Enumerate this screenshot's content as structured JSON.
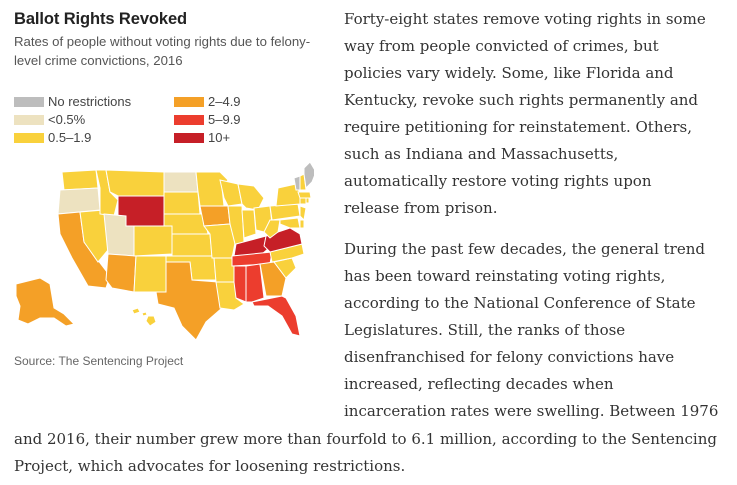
{
  "figure": {
    "title": "Ballot Rights Revoked",
    "subtitle": "Rates of people without voting rights due to felony-level crime convictions, 2016",
    "source": "Source: The Sentencing Project",
    "legend": [
      {
        "label": "No restrictions",
        "color": "#bdbdbd"
      },
      {
        "label": "<0.5%",
        "color": "#ede2c0"
      },
      {
        "label": "0.5–1.9",
        "color": "#f9d13c"
      },
      {
        "label": "2–4.9",
        "color": "#f4a027"
      },
      {
        "label": "5–9.9",
        "color": "#ec3d2e"
      },
      {
        "label": "10+",
        "color": "#c61f27"
      }
    ],
    "map_icon": "us-states-choropleth"
  },
  "article": {
    "paragraph1_lines": [
      "Forty-eight states remove voting rights in some",
      "way from people convicted of crimes, but",
      "policies vary widely. Some, like Florida and",
      "Kentucky, revoke such rights permanently and",
      "require petitioning for reinstatement. Others,",
      "such as Indiana and Massachusetts,",
      "automatically restore voting rights upon",
      "release from prison."
    ],
    "paragraph2_lines": [
      "During the past few decades, the general trend",
      "has been toward reinstating voting rights,",
      "according to the National Conference of State",
      "Legislatures. Still, the ranks of those",
      "disenfranchised for felony convictions have",
      "increased, reflecting decades when",
      "incarceration rates were swelling. Between 1976"
    ],
    "paragraph2_full_lines": [
      "and 2016, their number grew more than fourfold to 6.1 million, according to the Sentencing",
      "Project, which advocates for loosening restrictions."
    ]
  }
}
